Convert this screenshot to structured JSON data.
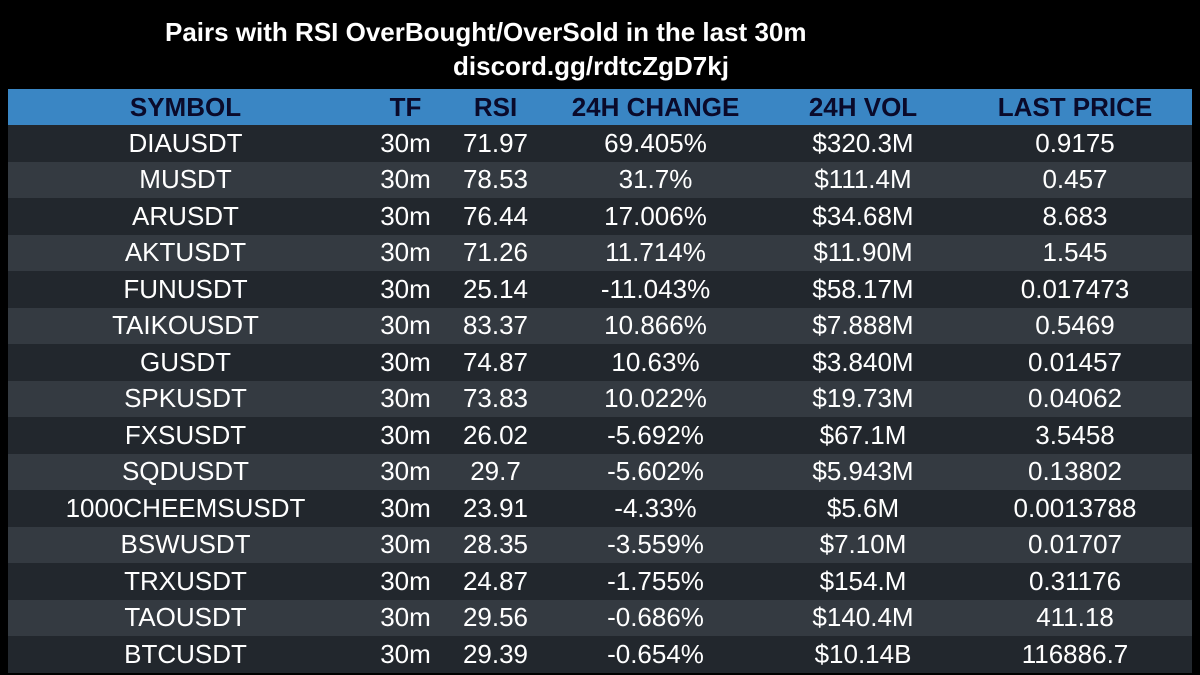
{
  "header": {
    "title": "Pairs with RSI OverBought/OverSold in the last 30m",
    "subtitle": "discord.gg/rdtcZgD7kj"
  },
  "colors": {
    "background": "#000000",
    "header_row": "#3a86c4",
    "header_text": "#0a0a2a",
    "row_dark": "#22272d",
    "row_light": "#343a41"
  },
  "table": {
    "columns": [
      "SYMBOL",
      "TF",
      "RSI",
      "24H CHANGE",
      "24H VOL",
      "LAST PRICE"
    ],
    "rows": [
      [
        "DIAUSDT",
        "30m",
        "71.97",
        "69.405%",
        "$320.3M",
        "0.9175"
      ],
      [
        "MUSDT",
        "30m",
        "78.53",
        "31.7%",
        "$111.4M",
        "0.457"
      ],
      [
        "ARUSDT",
        "30m",
        "76.44",
        "17.006%",
        "$34.68M",
        "8.683"
      ],
      [
        "AKTUSDT",
        "30m",
        "71.26",
        "11.714%",
        "$11.90M",
        "1.545"
      ],
      [
        "FUNUSDT",
        "30m",
        "25.14",
        "-11.043%",
        "$58.17M",
        "0.017473"
      ],
      [
        "TAIKOUSDT",
        "30m",
        "83.37",
        "10.866%",
        "$7.888M",
        "0.5469"
      ],
      [
        "GUSDT",
        "30m",
        "74.87",
        "10.63%",
        "$3.840M",
        "0.01457"
      ],
      [
        "SPKUSDT",
        "30m",
        "73.83",
        "10.022%",
        "$19.73M",
        "0.04062"
      ],
      [
        "FXSUSDT",
        "30m",
        "26.02",
        "-5.692%",
        "$67.1M",
        "3.5458"
      ],
      [
        "SQDUSDT",
        "30m",
        "29.7",
        "-5.602%",
        "$5.943M",
        "0.13802"
      ],
      [
        "1000CHEEMSUSDT",
        "30m",
        "23.91",
        "-4.33%",
        "$5.6M",
        "0.0013788"
      ],
      [
        "BSWUSDT",
        "30m",
        "28.35",
        "-3.559%",
        "$7.10M",
        "0.01707"
      ],
      [
        "TRXUSDT",
        "30m",
        "24.87",
        "-1.755%",
        "$154.M",
        "0.31176"
      ],
      [
        "TAOUSDT",
        "30m",
        "29.56",
        "-0.686%",
        "$140.4M",
        "411.18"
      ],
      [
        "BTCUSDT",
        "30m",
        "29.39",
        "-0.654%",
        "$10.14B",
        "116886.7"
      ]
    ]
  }
}
